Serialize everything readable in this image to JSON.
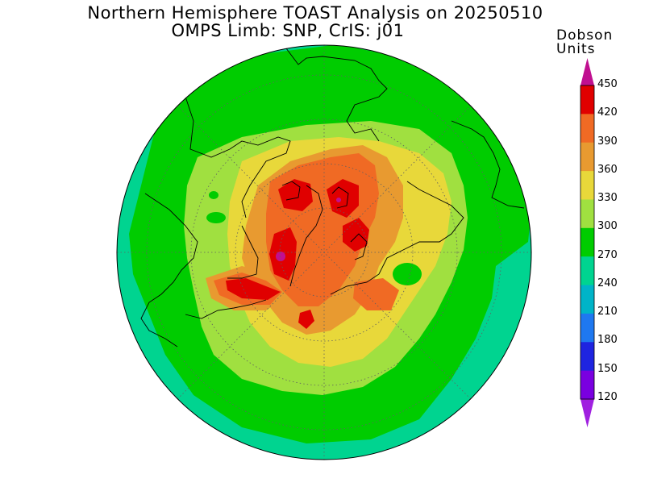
{
  "title": {
    "line1": "Northern Hemisphere TOAST Analysis on 20250510",
    "line2": "OMPS Limb: SNP, CrIS: j01"
  },
  "colorbar": {
    "title_line1": "Dobson",
    "title_line2": "Units",
    "labels": [
      "450",
      "420",
      "390",
      "360",
      "330",
      "300",
      "270",
      "240",
      "210",
      "180",
      "150",
      "120"
    ],
    "colors": [
      "#e00000",
      "#f06a24",
      "#e89a30",
      "#e8d83a",
      "#a0e040",
      "#00cc00",
      "#00d490",
      "#00b4c8",
      "#1e78f0",
      "#1e24e0",
      "#7a00e0"
    ],
    "top_cap_color": "#c01090",
    "bottom_cap_color": "#a020e0"
  },
  "map": {
    "projection": "north-polar-stereographic",
    "ocean_background_level": "270",
    "max_region_level": "450",
    "coastline_color": "#000000",
    "grid_color": "#606060"
  }
}
